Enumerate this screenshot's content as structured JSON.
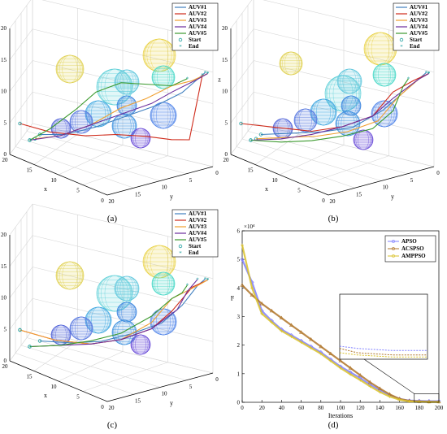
{
  "panels": [
    {
      "label": "(a)"
    },
    {
      "label": "(b)"
    },
    {
      "label": "(c)"
    },
    {
      "label": "(d)"
    }
  ],
  "axes3d": {
    "x_label": "x",
    "y_label": "y",
    "z_label": "z",
    "x_ticks": [
      "0",
      "5",
      "10",
      "15",
      "20"
    ],
    "y_ticks": [
      "0",
      "5",
      "10",
      "15",
      "20"
    ],
    "z_ticks": [
      "0",
      "5",
      "10",
      "15",
      "20"
    ]
  },
  "legend3d": [
    {
      "label": "AUV#1",
      "color": "#3f7fbf",
      "marker": "line"
    },
    {
      "label": "AUV#2",
      "color": "#cf2a1a",
      "marker": "line"
    },
    {
      "label": "AUV#3",
      "color": "#f0a030",
      "marker": "line"
    },
    {
      "label": "AUV#4",
      "color": "#6a2c9c",
      "marker": "line"
    },
    {
      "label": "AUV#5",
      "color": "#3c9a2e",
      "marker": "line"
    },
    {
      "label": "Start",
      "color": "#21a0a0",
      "marker": "circle"
    },
    {
      "label": "End",
      "color": "#21a0a0",
      "marker": "star"
    }
  ],
  "chart_data": [
    {
      "type": "line",
      "panel": "(a)",
      "kind": "3d-trajectories",
      "xlim": [
        0,
        20
      ],
      "ylim": [
        0,
        20
      ],
      "zlim": [
        0,
        20
      ],
      "series": [
        {
          "name": "AUV#1",
          "points": [
            [
              16,
              18,
              4
            ],
            [
              13,
              16,
              4.5
            ],
            [
              10,
              13,
              6
            ],
            [
              7,
              10,
              8
            ],
            [
              4,
              7,
              10
            ],
            [
              2,
              4,
              12
            ],
            [
              1,
              2,
              14
            ],
            [
              0.5,
              1,
              15
            ]
          ]
        },
        {
          "name": "AUV#2",
          "points": [
            [
              19,
              19,
              5
            ],
            [
              15,
              17,
              4.5
            ],
            [
              11,
              14,
              4.5
            ],
            [
              8,
              11,
              5
            ],
            [
              5,
              8,
              5
            ],
            [
              2,
              6,
              5
            ],
            [
              0.5,
              4,
              5
            ],
            [
              0,
              2,
              15
            ]
          ]
        },
        {
          "name": "AUV#3",
          "points": [
            [
              17,
              18,
              3
            ],
            [
              14,
              16,
              4
            ],
            [
              11,
              13,
              6
            ],
            [
              8,
              10,
              9
            ],
            [
              5,
              8,
              11
            ],
            [
              3,
              5,
              13
            ],
            [
              1,
              3,
              14
            ],
            [
              0,
              1,
              15
            ]
          ]
        },
        {
          "name": "AUV#4",
          "points": [
            [
              17,
              19,
              3
            ],
            [
              14,
              16,
              4
            ],
            [
              11,
              13,
              6
            ],
            [
              8,
              10,
              8
            ],
            [
              5,
              7,
              10
            ],
            [
              3,
              5,
              12
            ],
            [
              1,
              2,
              14
            ],
            [
              0,
              1,
              15
            ]
          ]
        },
        {
          "name": "AUV#5",
          "points": [
            [
              17,
              19,
              3
            ],
            [
              15,
              17,
              5
            ],
            [
              13,
              14,
              8
            ],
            [
              11,
              12,
              11
            ],
            [
              8,
              10,
              13
            ],
            [
              5,
              7,
              13
            ],
            [
              3,
              5,
              13
            ],
            [
              2,
              3,
              14
            ]
          ]
        }
      ]
    },
    {
      "type": "line",
      "panel": "(b)",
      "kind": "3d-trajectories",
      "xlim": [
        0,
        20
      ],
      "ylim": [
        0,
        20
      ],
      "zlim": [
        0,
        20
      ],
      "series": [
        {
          "name": "AUV#1",
          "points": [
            [
              16,
              18,
              4
            ],
            [
              13,
              15,
              4.5
            ],
            [
              10,
              12,
              5
            ],
            [
              7,
              9,
              6
            ],
            [
              4,
              6,
              9
            ],
            [
              2,
              4,
              12
            ],
            [
              1,
              2,
              14
            ],
            [
              0.5,
              1,
              15
            ]
          ]
        },
        {
          "name": "AUV#2",
          "points": [
            [
              19,
              19,
              5
            ],
            [
              15,
              16,
              5
            ],
            [
              11,
              13,
              5
            ],
            [
              8,
              10,
              6
            ],
            [
              5,
              7,
              8
            ],
            [
              3,
              5,
              12
            ],
            [
              1,
              3,
              14
            ],
            [
              0,
              1,
              15
            ]
          ]
        },
        {
          "name": "AUV#3",
          "points": [
            [
              17,
              18,
              3
            ],
            [
              14,
              15,
              3.5
            ],
            [
              11,
              12,
              4
            ],
            [
              8,
              9,
              5
            ],
            [
              5,
              6,
              7
            ],
            [
              3,
              4,
              11
            ],
            [
              1,
              2,
              14
            ],
            [
              0,
              1,
              15
            ]
          ]
        },
        {
          "name": "AUV#4",
          "points": [
            [
              17,
              19,
              3
            ],
            [
              14,
              16,
              3.5
            ],
            [
              11,
              13,
              4.5
            ],
            [
              8,
              10,
              6
            ],
            [
              5,
              7,
              8
            ],
            [
              3,
              5,
              11
            ],
            [
              1,
              2,
              14
            ],
            [
              0,
              1,
              15
            ]
          ]
        },
        {
          "name": "AUV#5",
          "points": [
            [
              17,
              19,
              3
            ],
            [
              14,
              16,
              3
            ],
            [
              11,
              13,
              3.5
            ],
            [
              8,
              10,
              4.5
            ],
            [
              5,
              7,
              6
            ],
            [
              3,
              5,
              9
            ],
            [
              2,
              4,
              13
            ],
            [
              2,
              3,
              14
            ]
          ]
        }
      ]
    },
    {
      "type": "line",
      "panel": "(c)",
      "kind": "3d-trajectories",
      "xlim": [
        0,
        20
      ],
      "ylim": [
        0,
        20
      ],
      "zlim": [
        0,
        20
      ],
      "series": [
        {
          "name": "AUV#1",
          "points": [
            [
              16,
              18,
              4
            ],
            [
              13,
              15,
              4
            ],
            [
              10,
              12,
              4.5
            ],
            [
              7,
              9,
              6
            ],
            [
              4,
              6,
              8
            ],
            [
              2,
              4,
              11
            ],
            [
              1,
              2,
              14
            ],
            [
              0.5,
              1,
              15
            ]
          ]
        },
        {
          "name": "AUV#2",
          "points": [
            [
              19,
              19,
              5
            ],
            [
              15,
              16,
              4
            ],
            [
              11,
              13,
              4
            ],
            [
              8,
              10,
              5
            ],
            [
              5,
              7,
              7
            ],
            [
              3,
              5,
              10
            ],
            [
              1,
              3,
              14
            ],
            [
              0,
              1,
              15
            ]
          ]
        },
        {
          "name": "AUV#3",
          "points": [
            [
              19,
              19,
              5
            ],
            [
              15,
              16,
              4
            ],
            [
              11,
              13,
              4
            ],
            [
              8,
              10,
              5
            ],
            [
              5,
              7,
              8
            ],
            [
              3,
              5,
              12
            ],
            [
              1,
              2,
              14
            ],
            [
              0,
              1,
              15
            ]
          ]
        },
        {
          "name": "AUV#4",
          "points": [
            [
              17,
              19,
              3
            ],
            [
              14,
              16,
              3.5
            ],
            [
              11,
              13,
              4
            ],
            [
              8,
              10,
              5
            ],
            [
              5,
              7,
              7
            ],
            [
              3,
              4,
              10
            ],
            [
              2,
              3,
              13
            ],
            [
              1,
              2,
              15
            ]
          ]
        },
        {
          "name": "AUV#5",
          "points": [
            [
              17,
              19,
              3
            ],
            [
              14,
              16,
              3.5
            ],
            [
              11,
              13,
              4.5
            ],
            [
              8,
              10,
              6
            ],
            [
              5,
              7,
              9
            ],
            [
              3,
              5,
              12
            ],
            [
              2,
              4,
              13
            ],
            [
              2,
              3,
              14
            ]
          ]
        }
      ]
    },
    {
      "type": "line",
      "panel": "(d)",
      "xlabel": "Iterations",
      "ylabel": "F",
      "y_multiplier": "×10⁴",
      "xlim": [
        0,
        200
      ],
      "ylim": [
        0,
        6
      ],
      "x_ticks": [
        0,
        20,
        40,
        60,
        80,
        100,
        120,
        140,
        160,
        180,
        200
      ],
      "y_ticks": [
        0,
        1,
        2,
        3,
        4,
        5,
        6
      ],
      "legend_position": "top-right",
      "inset": {
        "x_range": [
          175,
          200
        ],
        "y_range": [
          0,
          0.3
        ]
      },
      "x": [
        0,
        10,
        20,
        30,
        40,
        50,
        60,
        70,
        80,
        90,
        100,
        110,
        120,
        130,
        140,
        150,
        160,
        170,
        180,
        190,
        200
      ],
      "series": [
        {
          "name": "APSO",
          "color": "#7f7fff",
          "values": [
            5.0,
            4.2,
            3.2,
            2.85,
            2.55,
            2.35,
            2.15,
            1.95,
            1.75,
            1.5,
            1.25,
            1.05,
            0.85,
            0.62,
            0.42,
            0.25,
            0.12,
            0.06,
            0.05,
            0.04,
            0.04
          ]
        },
        {
          "name": "ACSPSO",
          "color": "#b0762a",
          "values": [
            4.1,
            3.75,
            3.45,
            3.2,
            2.95,
            2.7,
            2.45,
            2.2,
            1.95,
            1.7,
            1.45,
            1.2,
            0.95,
            0.7,
            0.48,
            0.28,
            0.12,
            0.05,
            0.03,
            0.02,
            0.02
          ]
        },
        {
          "name": "AMPPSO",
          "color": "#d9c22a",
          "values": [
            5.5,
            4.0,
            3.1,
            2.8,
            2.5,
            2.3,
            2.1,
            1.9,
            1.7,
            1.45,
            1.2,
            0.98,
            0.78,
            0.56,
            0.36,
            0.2,
            0.09,
            0.03,
            0.02,
            0.01,
            0.01
          ]
        }
      ]
    }
  ]
}
